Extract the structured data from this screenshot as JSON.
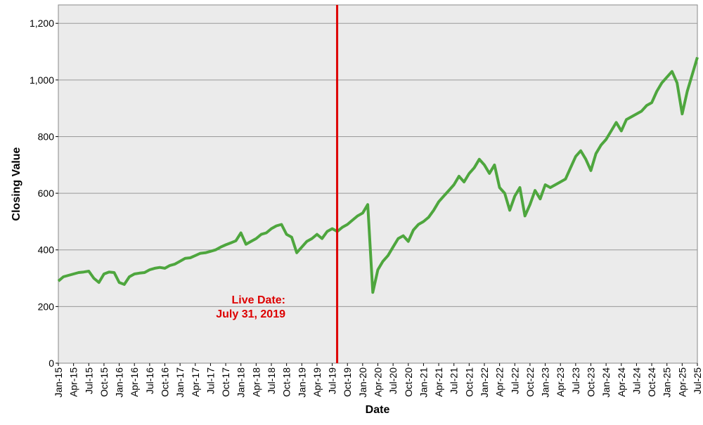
{
  "chart_data": {
    "type": "line",
    "x_label": "Date",
    "y_label": "Closing Value",
    "annotation": [
      "Live Date:",
      "July 31, 2019"
    ],
    "categories": [
      "Jan-15",
      null,
      null,
      "Apr-15",
      null,
      null,
      "Jul-15",
      null,
      null,
      "Oct-15",
      null,
      null,
      "Jan-16",
      null,
      null,
      "Apr-16",
      null,
      null,
      "Jul-16",
      null,
      null,
      "Oct-16",
      null,
      null,
      "Jan-17",
      null,
      null,
      "Apr-17",
      null,
      null,
      "Jul-17",
      null,
      null,
      "Oct-17",
      null,
      null,
      "Jan-18",
      null,
      null,
      "Apr-18",
      null,
      null,
      "Jul-18",
      null,
      null,
      "Oct-18",
      null,
      null,
      "Jan-19",
      null,
      null,
      "Apr-19",
      null,
      null,
      "Jul-19",
      null,
      null,
      "Oct-19",
      null,
      null,
      "Jan-20",
      null,
      null,
      "Apr-20",
      null,
      null,
      "Jul-20",
      null,
      null,
      "Oct-20",
      null,
      null,
      "Jan-21",
      null,
      null,
      "Apr-21",
      null,
      null,
      "Jul-21",
      null,
      null,
      "Oct-21",
      null,
      null,
      "Jan-22",
      null,
      null,
      "Apr-22",
      null,
      null,
      "Jul-22",
      null,
      null,
      "Oct-22",
      null,
      null,
      "Jan-23",
      null,
      null,
      "Apr-23",
      null,
      null,
      "Jul-23",
      null,
      null,
      "Oct-23",
      null,
      null,
      "Jan-24",
      null,
      null,
      "Apr-24",
      null,
      null,
      "Jul-24",
      null,
      null,
      "Oct-24",
      null,
      null,
      "Jan-25",
      null,
      null,
      "Apr-25",
      null,
      null,
      "Jul-25"
    ],
    "values": [
      290,
      305,
      310,
      315,
      320,
      322,
      325,
      300,
      285,
      315,
      322,
      320,
      285,
      278,
      305,
      315,
      318,
      320,
      330,
      335,
      338,
      335,
      345,
      350,
      360,
      370,
      372,
      380,
      388,
      390,
      395,
      400,
      410,
      418,
      425,
      432,
      460,
      420,
      430,
      440,
      455,
      460,
      475,
      485,
      490,
      455,
      445,
      390,
      410,
      430,
      440,
      455,
      440,
      465,
      475,
      465,
      480,
      490,
      505,
      520,
      530,
      560,
      250,
      330,
      360,
      380,
      410,
      440,
      450,
      430,
      470,
      490,
      500,
      515,
      540,
      570,
      590,
      610,
      630,
      660,
      640,
      670,
      690,
      720,
      700,
      670,
      700,
      620,
      600,
      540,
      590,
      620,
      520,
      560,
      610,
      580,
      630,
      620,
      630,
      640,
      650,
      690,
      730,
      750,
      720,
      680,
      740,
      770,
      790,
      820,
      850,
      820,
      860,
      870,
      880,
      890,
      910,
      920,
      960,
      990,
      1010,
      1030,
      990,
      880,
      960,
      1020,
      1080
    ],
    "color": "#4ea63e",
    "annotation_color": "#dd0000",
    "ylim": [
      0,
      1265
    ],
    "yticks": [
      0,
      200,
      400,
      600,
      800,
      {
        "value": 1000,
        "label": "1,000"
      },
      {
        "value": 1200,
        "label": "1,200"
      }
    ],
    "grid": true
  }
}
